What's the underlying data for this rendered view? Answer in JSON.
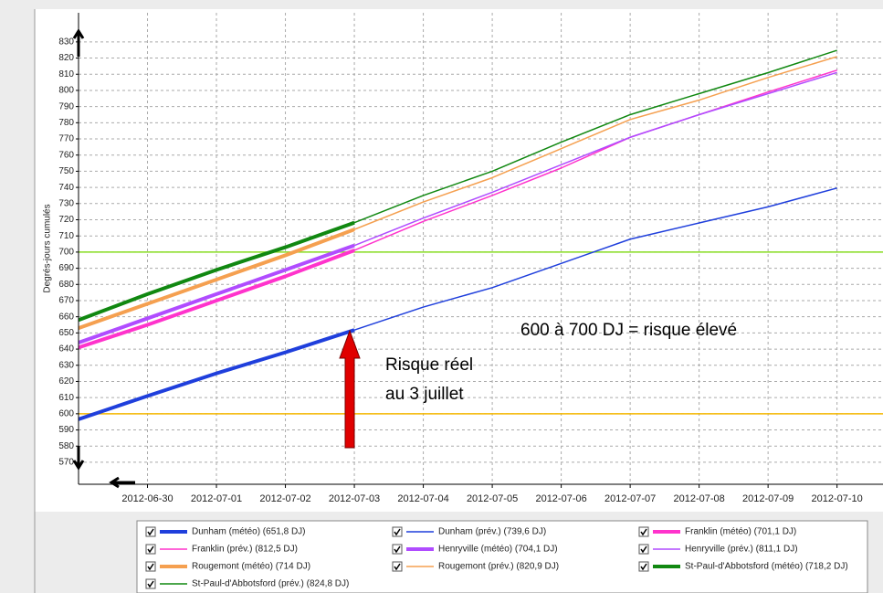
{
  "chart_data": {
    "type": "line",
    "y_label": "Degrés-jours cumulés",
    "x": [
      "2012-06-29",
      "2012-06-30",
      "2012-07-01",
      "2012-07-02",
      "2012-07-03",
      "2012-07-04",
      "2012-07-05",
      "2012-07-06",
      "2012-07-07",
      "2012-07-08",
      "2012-07-09",
      "2012-07-10"
    ],
    "xlim": [
      "2012-06-29",
      "2012-07-10T16:00"
    ],
    "xticks": [
      "2012-06-30",
      "2012-07-01",
      "2012-07-02",
      "2012-07-03",
      "2012-07-04",
      "2012-07-05",
      "2012-07-06",
      "2012-07-07",
      "2012-07-08",
      "2012-07-09",
      "2012-07-10"
    ],
    "ylim": [
      556.4,
      848
    ],
    "yticks": [
      570,
      580,
      590,
      600,
      610,
      620,
      630,
      640,
      650,
      660,
      670,
      680,
      690,
      700,
      710,
      720,
      730,
      740,
      750,
      760,
      770,
      780,
      790,
      800,
      810,
      820,
      830
    ],
    "grid": true,
    "series": [
      {
        "name": "Dunham (météo) (651,8 DJ)",
        "color": "#1f3fdc",
        "linewidth": 4,
        "values": [
          596.6,
          611,
          625,
          638,
          651.8,
          null,
          null,
          null,
          null,
          null,
          null,
          null
        ]
      },
      {
        "name": "Dunham (prév.) (739,6 DJ)",
        "color": "#1f3fdc",
        "linewidth": 1.5,
        "values": [
          596.6,
          611,
          625,
          638,
          651.8,
          666,
          678,
          693,
          708,
          718,
          728,
          739.6
        ]
      },
      {
        "name": "Franklin (météo) (701,1 DJ)",
        "color": "#ff33cc",
        "linewidth": 4,
        "values": [
          641,
          655,
          670,
          685,
          701.1,
          null,
          null,
          null,
          null,
          null,
          null,
          null
        ]
      },
      {
        "name": "Franklin (prév.) (812,5 DJ)",
        "color": "#ff33cc",
        "linewidth": 1.5,
        "values": [
          641,
          655,
          670,
          685,
          701.1,
          719,
          735,
          752,
          771,
          785,
          799,
          812.5
        ]
      },
      {
        "name": "Henryville (météo) (704,1 DJ)",
        "color": "#b04cff",
        "linewidth": 4,
        "values": [
          644,
          659,
          674,
          689,
          704.1,
          null,
          null,
          null,
          null,
          null,
          null,
          null
        ]
      },
      {
        "name": "Henryville (prév.) (811,1 DJ)",
        "color": "#b04cff",
        "linewidth": 1.5,
        "values": [
          644,
          659,
          674,
          689,
          704.1,
          721,
          737,
          754,
          771,
          785,
          798,
          811.1
        ]
      },
      {
        "name": "Rougemont (météo) (714 DJ)",
        "color": "#f5a050",
        "linewidth": 4,
        "values": [
          653,
          668,
          683,
          698,
          714,
          null,
          null,
          null,
          null,
          null,
          null,
          null
        ]
      },
      {
        "name": "Rougemont (prév.) (820,9 DJ)",
        "color": "#f5a050",
        "linewidth": 1.5,
        "values": [
          653,
          668,
          683,
          698,
          714,
          731,
          746,
          764,
          782,
          794,
          808,
          820.9
        ]
      },
      {
        "name": "St-Paul-d'Abbotsford (météo) (718,2 DJ)",
        "color": "#118811",
        "linewidth": 4,
        "values": [
          658,
          674,
          689,
          703,
          718.2,
          null,
          null,
          null,
          null,
          null,
          null,
          null
        ]
      },
      {
        "name": "St-Paul-d'Abbotsford (prév.) (824,8 DJ)",
        "color": "#118811",
        "linewidth": 1.5,
        "values": [
          658,
          674,
          689,
          703,
          718.2,
          735,
          750,
          768,
          785,
          798,
          811,
          824.8
        ]
      }
    ],
    "reference_lines": [
      {
        "value": 700,
        "color": "#88dd22"
      },
      {
        "value": 600,
        "color": "#f5b800"
      }
    ],
    "annotations": [
      "600 à 700 DJ = risque élevé",
      "Risque réel",
      "au 3 juillet"
    ]
  }
}
